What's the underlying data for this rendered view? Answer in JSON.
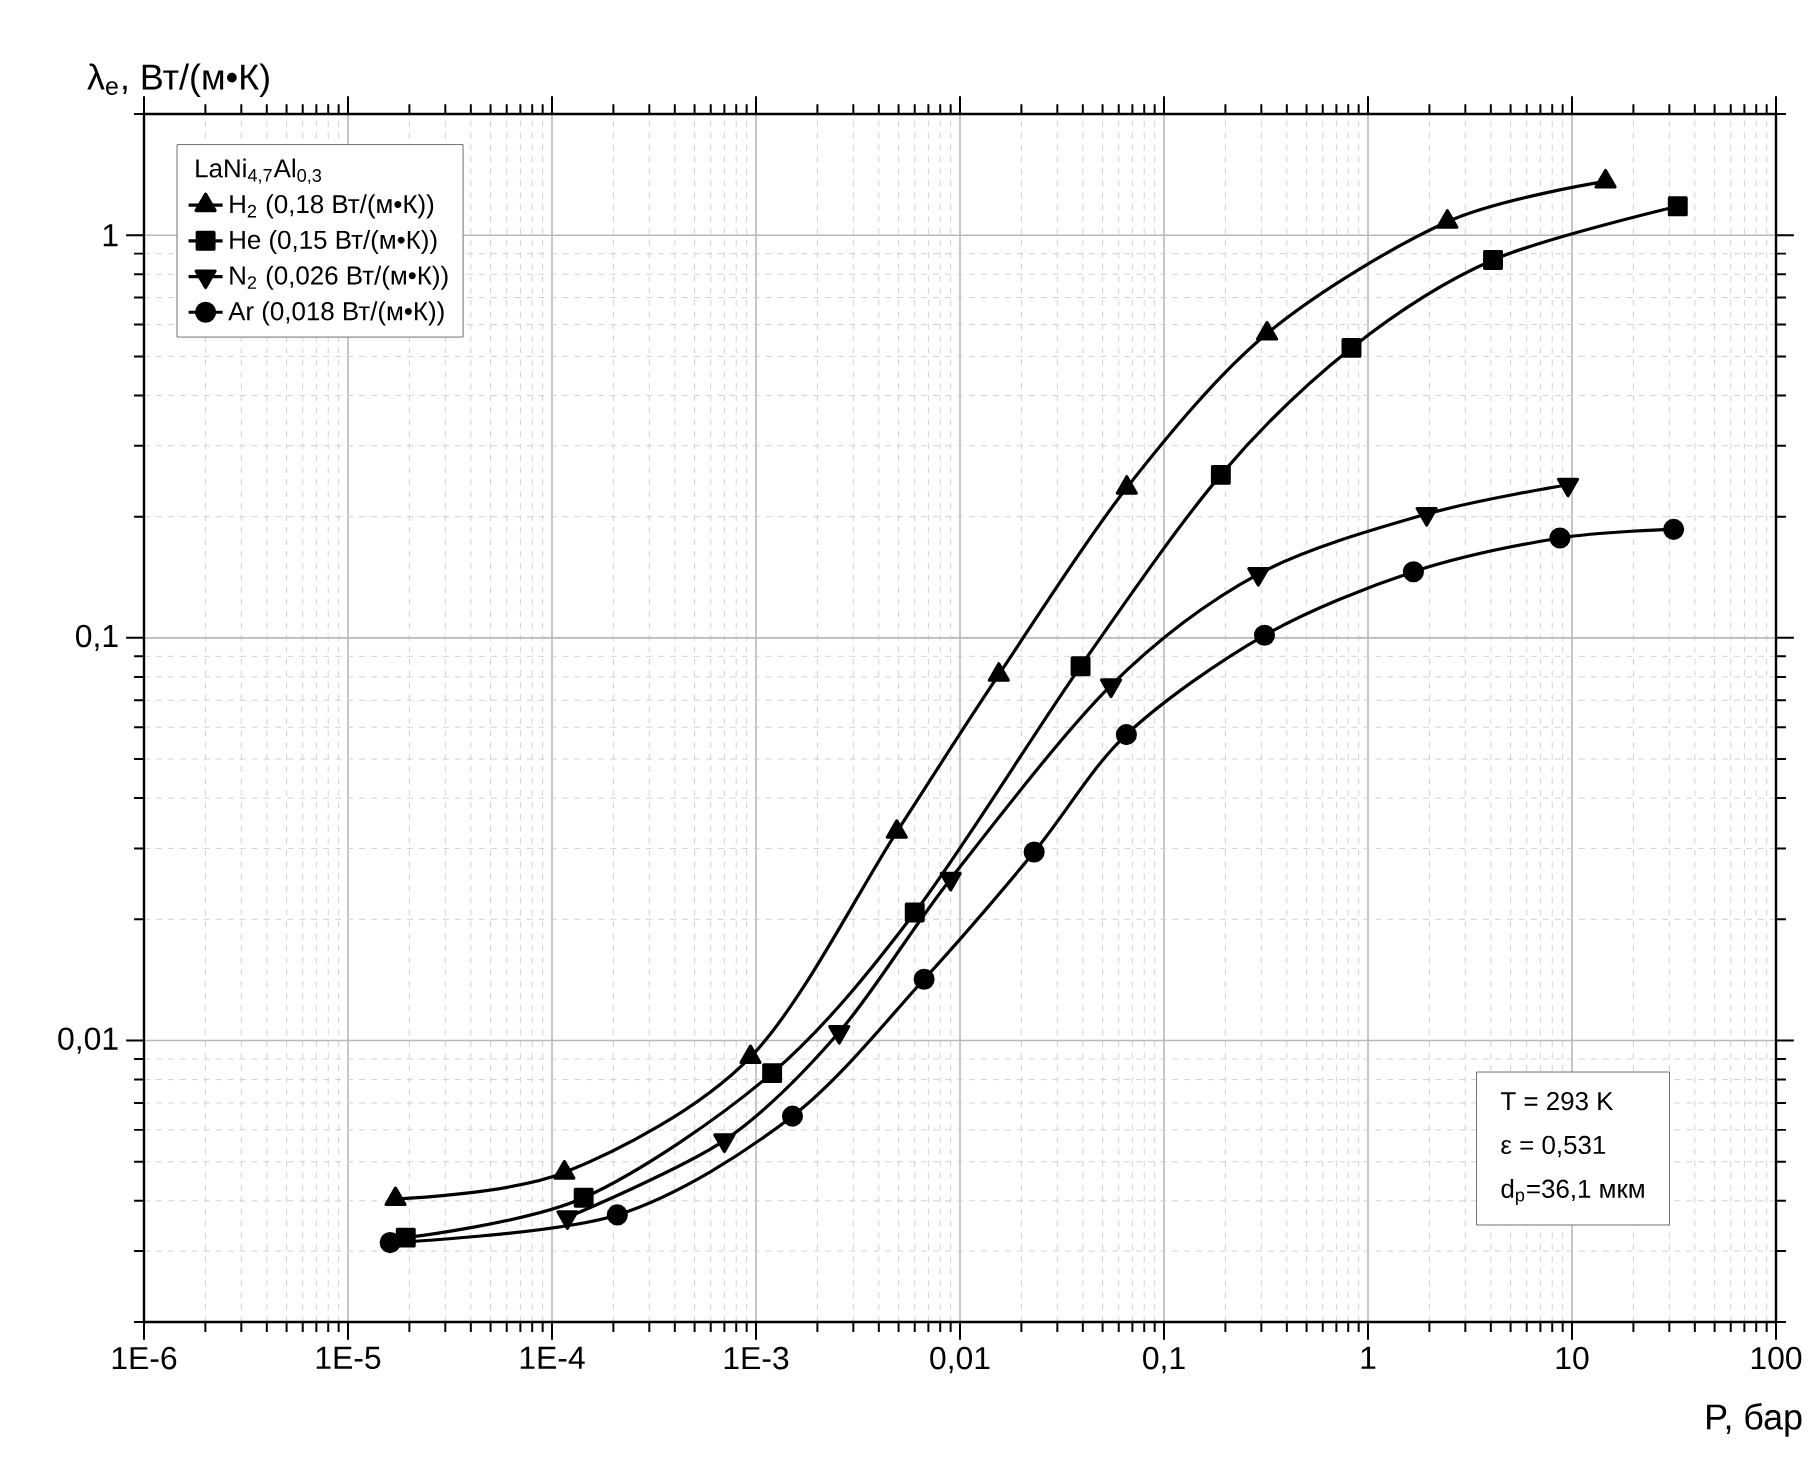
{
  "chart_data": {
    "type": "line",
    "xlabel": "P, бар",
    "ylabel": "λ$_{e}$, Вт/(м•К)",
    "legend_title": "LaNi$_{4,7}$Al$_{0,3}$",
    "log": "xy",
    "grid": true,
    "legend": "top left",
    "line_style": "solid",
    "xlim": [
      1e-06,
      100
    ],
    "ylim": [
      0.002,
      2
    ],
    "xticks": [
      {
        "value": 1e-06,
        "label": "1E-6"
      },
      {
        "value": 1e-05,
        "label": "1E-5"
      },
      {
        "value": 0.0001,
        "label": "1E-4"
      },
      {
        "value": 0.001,
        "label": "1E-3"
      },
      {
        "value": 0.01,
        "label": "0,01"
      },
      {
        "value": 0.1,
        "label": "0,1"
      },
      1,
      10,
      100
    ],
    "yticks": [
      {
        "value": 0.01,
        "label": "0,01"
      },
      {
        "value": 0.1,
        "label": "0,1"
      },
      1
    ],
    "annotations": [
      "T = 293 K",
      "ε = 0,531",
      "d$_{p}$=36,1 мкм"
    ],
    "series": [
      {
        "name": "H$_{2}$ (0,18 Вт/(м•К))",
        "color": "#000000",
        "marker": "triangle",
        "x": [
          1.71e-05,
          0.000115,
          0.00094,
          0.0049,
          0.0155,
          0.0657,
          0.32,
          2.45,
          14.6
        ],
        "values": [
          0.00404,
          0.0047,
          0.0091,
          0.033,
          0.081,
          0.236,
          0.57,
          1.08,
          1.36
        ]
      },
      {
        "name": "He (0,15 Вт/(м•К))",
        "color": "#000000",
        "marker": "square",
        "x": [
          1.92e-05,
          0.000143,
          0.0012,
          0.006,
          0.039,
          0.19,
          0.83,
          4.1,
          33
        ],
        "values": [
          0.00324,
          0.00407,
          0.0083,
          0.0208,
          0.085,
          0.254,
          0.525,
          0.868,
          1.18
        ]
      },
      {
        "name": "N$_{2}$ (0,026 Вт/(м•К))",
        "color": "#000000",
        "marker": "triangle-down",
        "x": [
          0.000119,
          0.0007,
          0.00256,
          0.009,
          0.055,
          0.29,
          1.94,
          9.56
        ],
        "values": [
          0.00364,
          0.00565,
          0.0105,
          0.0252,
          0.0762,
          0.144,
          0.203,
          0.24
        ]
      },
      {
        "name": "Ar (0,018 Вт/(м•К))",
        "color": "#000000",
        "marker": "circle",
        "x": [
          1.61e-05,
          0.000209,
          0.00151,
          0.00667,
          0.0231,
          0.0654,
          0.311,
          1.67,
          8.73,
          31.5
        ],
        "values": [
          0.00315,
          0.00369,
          0.00649,
          0.0142,
          0.0294,
          0.0575,
          0.1015,
          0.146,
          0.177,
          0.186
        ]
      }
    ]
  }
}
